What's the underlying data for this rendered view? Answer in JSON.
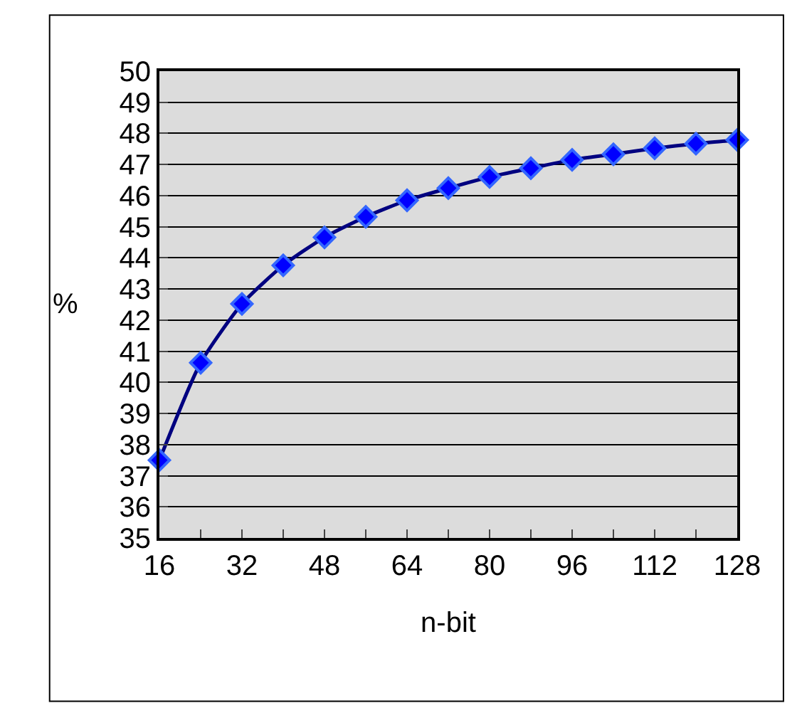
{
  "chart_data": {
    "type": "line",
    "xlabel": "n-bit",
    "ylabel": "%",
    "x": [
      16,
      24,
      32,
      40,
      48,
      56,
      64,
      72,
      80,
      88,
      96,
      104,
      112,
      120,
      128
    ],
    "series": [
      {
        "color": "#000080",
        "values": [
          37.5,
          40.63,
          42.52,
          43.76,
          44.66,
          45.32,
          45.85,
          46.24,
          46.6,
          46.88,
          47.15,
          47.33,
          47.52,
          47.67,
          47.79
        ]
      }
    ],
    "xlim": [
      16,
      128
    ],
    "xticks": [
      16,
      {
        "value": 24,
        "label": null
      },
      32,
      {
        "value": 40,
        "label": null
      },
      48,
      {
        "value": 56,
        "label": null
      },
      64,
      {
        "value": 72,
        "label": null
      },
      80,
      {
        "value": 88,
        "label": null
      },
      96,
      {
        "value": 104,
        "label": null
      },
      112,
      {
        "value": 120,
        "label": null
      },
      128
    ],
    "ylim": [
      35,
      50
    ],
    "yticks": [
      35,
      36,
      37,
      38,
      39,
      40,
      41,
      42,
      43,
      44,
      45,
      46,
      47,
      48,
      49,
      50
    ],
    "grid": "y",
    "legend": false,
    "marker": "diamond",
    "line_style": "solid"
  }
}
